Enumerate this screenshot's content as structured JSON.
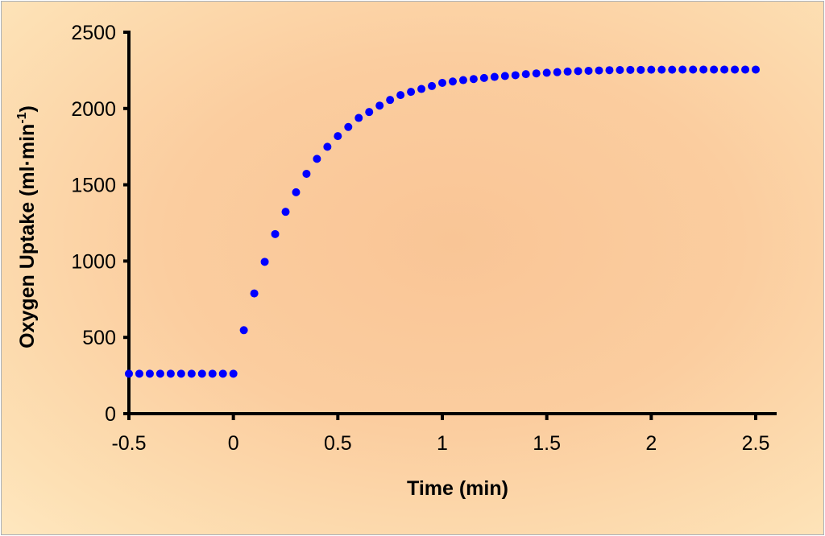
{
  "chart_data": {
    "type": "scatter",
    "title": "",
    "xlabel": "Time (min)",
    "ylabel": "Oxygen Uptake (ml·min⁻¹)",
    "ylabel_main": "Oxygen Uptake (ml·min",
    "ylabel_sup": "-1",
    "ylabel_close": ")",
    "xlim": [
      -0.5,
      2.5
    ],
    "ylim": [
      0,
      2500
    ],
    "xticks": [
      "-0.5",
      "0",
      "0.5",
      "1",
      "1.5",
      "2",
      "2.5"
    ],
    "xtick_values": [
      -0.5,
      0,
      0.5,
      1,
      1.5,
      2,
      2.5
    ],
    "yticks": [
      "0",
      "500",
      "1000",
      "1500",
      "2000",
      "2500"
    ],
    "ytick_values": [
      0,
      500,
      1000,
      1500,
      2000,
      2500
    ],
    "grid": false,
    "marker_color": "#0000ff",
    "background_color": "#fbcd9f",
    "x": [
      -0.5,
      -0.45,
      -0.4,
      -0.35,
      -0.3,
      -0.25,
      -0.2,
      -0.15,
      -0.1,
      -0.05,
      0,
      0.05,
      0.1,
      0.15,
      0.2,
      0.25,
      0.3,
      0.35,
      0.4,
      0.45,
      0.5,
      0.55,
      0.6,
      0.65,
      0.7,
      0.75,
      0.8,
      0.85,
      0.9,
      0.95,
      1.0,
      1.05,
      1.1,
      1.15,
      1.2,
      1.25,
      1.3,
      1.35,
      1.4,
      1.45,
      1.5,
      1.55,
      1.6,
      1.65,
      1.7,
      1.75,
      1.8,
      1.85,
      1.9,
      1.95,
      2.0,
      2.05,
      2.1,
      2.15,
      2.2,
      2.25,
      2.3,
      2.35,
      2.4,
      2.45,
      2.5
    ],
    "y": [
      262,
      262,
      262,
      262,
      262,
      262,
      262,
      262,
      262,
      262,
      262,
      547,
      788,
      995,
      1177,
      1323,
      1451,
      1572,
      1670,
      1749,
      1819,
      1879,
      1938,
      1977,
      2019,
      2056,
      2088,
      2109,
      2128,
      2147,
      2168,
      2177,
      2186,
      2193,
      2200,
      2207,
      2213,
      2218,
      2225,
      2230,
      2234,
      2238,
      2242,
      2245,
      2247,
      2249,
      2251,
      2252,
      2253,
      2253,
      2254,
      2254,
      2254,
      2255,
      2255,
      2255,
      2255,
      2255,
      2255,
      2255,
      2255
    ]
  }
}
